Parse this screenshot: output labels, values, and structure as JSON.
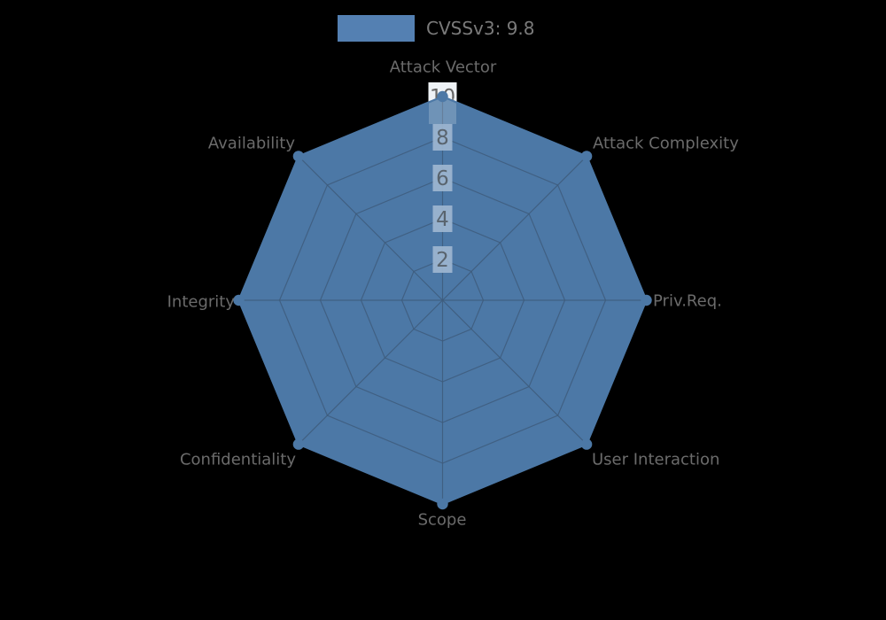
{
  "window": {
    "background": "#000000"
  },
  "legend": {
    "label": "CVSSv3: 9.8",
    "swatch_color": "#5480B2",
    "text_color": "#7A7A7A",
    "position": "top-center"
  },
  "chart_data": {
    "type": "radar",
    "title": "",
    "categories": [
      "Attack Vector",
      "Attack Complexity",
      "Priv.Req.",
      "User Interaction",
      "Scope",
      "Confidentiality",
      "Integrity",
      "Availability"
    ],
    "series": [
      {
        "name": "CVSSv3: 9.8",
        "values": [
          10,
          10,
          10,
          10,
          10,
          10,
          10,
          10
        ]
      }
    ],
    "r_ticks": [
      2,
      4,
      6,
      8,
      10
    ],
    "r_min": 0,
    "r_max": 10,
    "grid": true,
    "start_axis": "top",
    "direction": "clockwise",
    "legend_position": "top-center",
    "colors": {
      "fill": "#4C78A6",
      "line": "#4C78A6",
      "marker": "#4C78A6",
      "grid_line": "#3E5C7C",
      "tick_box": "#9DB6D0",
      "tick_box_outer": "#EEF2F6",
      "tick_text": "#59646E",
      "tick_text_outer": "#666666",
      "axis_label": "#6B6B6B",
      "background": "#000000"
    }
  }
}
